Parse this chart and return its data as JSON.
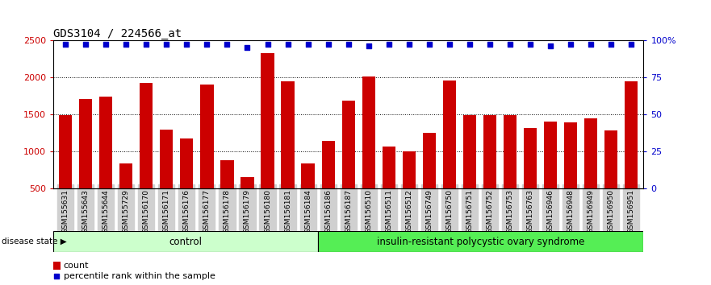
{
  "title": "GDS3104 / 224566_at",
  "samples": [
    "GSM155631",
    "GSM155643",
    "GSM155644",
    "GSM155729",
    "GSM156170",
    "GSM156171",
    "GSM156176",
    "GSM156177",
    "GSM156178",
    "GSM156179",
    "GSM156180",
    "GSM156181",
    "GSM156184",
    "GSM156186",
    "GSM156187",
    "GSM156510",
    "GSM156511",
    "GSM156512",
    "GSM156749",
    "GSM156750",
    "GSM156751",
    "GSM156752",
    "GSM156753",
    "GSM156763",
    "GSM156946",
    "GSM156948",
    "GSM156949",
    "GSM156950",
    "GSM156951"
  ],
  "counts": [
    1480,
    1700,
    1740,
    830,
    1920,
    1290,
    1175,
    1900,
    880,
    650,
    2320,
    1940,
    830,
    1140,
    1680,
    2010,
    1060,
    1000,
    1250,
    1950,
    1480,
    1490,
    1490,
    1310,
    1400,
    1390,
    1440,
    1280,
    1940
  ],
  "percentile_ranks": [
    97,
    97,
    97,
    97,
    97,
    97,
    97,
    97,
    97,
    95,
    97,
    97,
    97,
    97,
    97,
    96,
    97,
    97,
    97,
    97,
    97,
    97,
    97,
    97,
    96,
    97,
    97,
    97,
    97
  ],
  "control_count": 13,
  "disease_label": "insulin-resistant polycystic ovary syndrome",
  "control_label": "control",
  "disease_state_label": "disease state",
  "bar_color": "#CC0000",
  "dot_color": "#0000CC",
  "ylim_left": [
    500,
    2500
  ],
  "ylim_right": [
    0,
    100
  ],
  "yticks_left": [
    500,
    1000,
    1500,
    2000,
    2500
  ],
  "yticks_right": [
    0,
    25,
    50,
    75,
    100
  ],
  "ytick_right_labels": [
    "0",
    "25",
    "50",
    "75",
    "100%"
  ],
  "grid_values": [
    1000,
    1500,
    2000
  ],
  "background_color": "#ffffff",
  "tick_label_color_left": "#CC0000",
  "tick_label_color_right": "#0000CC",
  "control_bg": "#ccffcc",
  "disease_bg": "#55ee55",
  "xtick_bg": "#d0d0d0",
  "title_fontsize": 10,
  "tick_fontsize": 6.5,
  "legend_fontsize": 8,
  "bar_width": 0.65
}
